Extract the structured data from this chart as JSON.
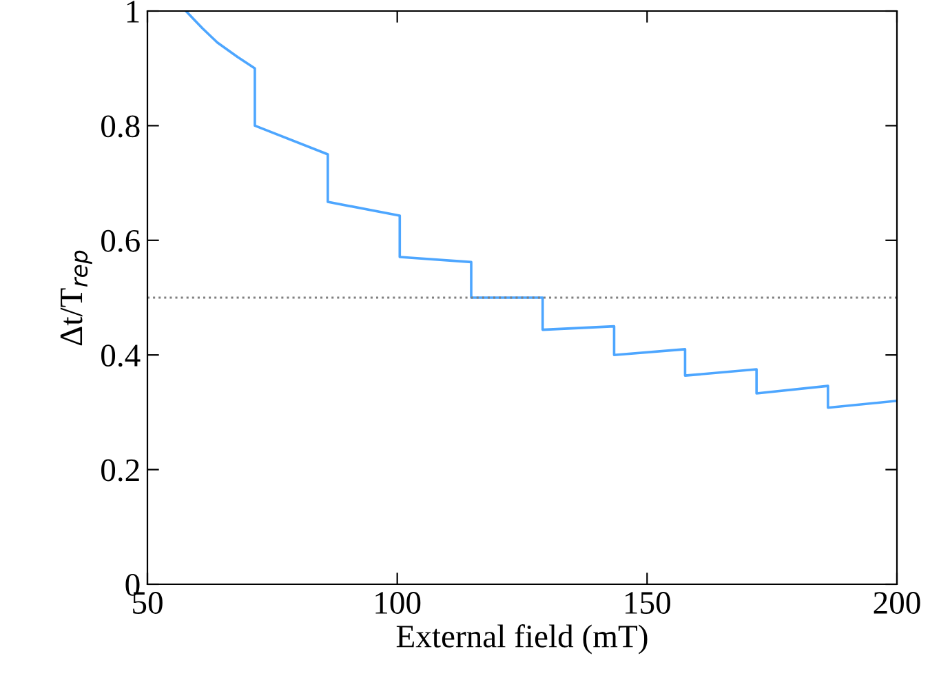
{
  "chart_data": {
    "type": "line",
    "xlabel": "External field (mT)",
    "ylabel": "Δt/T$_{rep}$",
    "xlim": [
      50,
      200
    ],
    "ylim": [
      0,
      1
    ],
    "xticks": [
      50,
      100,
      150,
      200
    ],
    "yticks": [
      0,
      0.2,
      0.4,
      0.6,
      0.8,
      1
    ],
    "grid": false,
    "legend": false,
    "marker": "none",
    "line_style": "solid",
    "series": [
      {
        "color": "#4da6ff",
        "x": [
          57.7,
          61,
          64,
          68,
          71.5,
          71.5,
          86.1,
          86.1,
          100.5,
          100.5,
          114.8,
          114.8,
          129.1,
          129.1,
          143.4,
          143.4,
          157.6,
          157.6,
          171.9,
          171.9,
          186.2,
          186.2,
          200
        ],
        "values": [
          1.0,
          0.97,
          0.945,
          0.92,
          0.9,
          0.8,
          0.75,
          0.667,
          0.643,
          0.571,
          0.562,
          0.5,
          0.5,
          0.444,
          0.45,
          0.4,
          0.41,
          0.364,
          0.375,
          0.333,
          0.346,
          0.308,
          0.32
        ]
      }
    ],
    "ref_lines": [
      {
        "axis": "y",
        "value": 0.5,
        "color": "#808080",
        "line_style": "dotted"
      }
    ]
  }
}
